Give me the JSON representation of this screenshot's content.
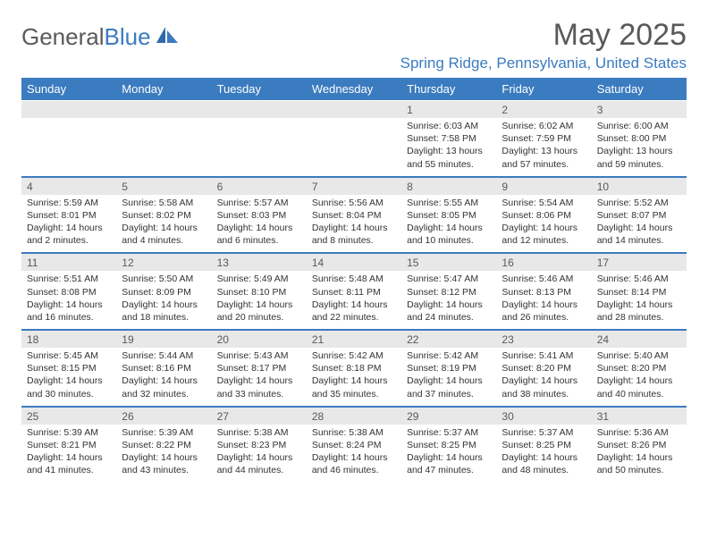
{
  "brand": {
    "text1": "General",
    "text2": "Blue"
  },
  "title": "May 2025",
  "location": "Spring Ridge, Pennsylvania, United States",
  "colors": {
    "accent": "#3b7bbf",
    "header_text": "#595959",
    "daynum_bg": "#e8e8e8",
    "body_text": "#333333",
    "page_bg": "#ffffff"
  },
  "typography": {
    "title_fontsize": 34,
    "location_fontsize": 17,
    "day_header_fontsize": 13,
    "daynum_fontsize": 12,
    "detail_fontsize": 10.5
  },
  "calendar": {
    "day_headers": [
      "Sunday",
      "Monday",
      "Tuesday",
      "Wednesday",
      "Thursday",
      "Friday",
      "Saturday"
    ],
    "weeks": [
      {
        "dates": [
          "",
          "",
          "",
          "",
          "1",
          "2",
          "3"
        ],
        "details": [
          "",
          "",
          "",
          "",
          "Sunrise: 6:03 AM\nSunset: 7:58 PM\nDaylight: 13 hours and 55 minutes.",
          "Sunrise: 6:02 AM\nSunset: 7:59 PM\nDaylight: 13 hours and 57 minutes.",
          "Sunrise: 6:00 AM\nSunset: 8:00 PM\nDaylight: 13 hours and 59 minutes."
        ]
      },
      {
        "dates": [
          "4",
          "5",
          "6",
          "7",
          "8",
          "9",
          "10"
        ],
        "details": [
          "Sunrise: 5:59 AM\nSunset: 8:01 PM\nDaylight: 14 hours and 2 minutes.",
          "Sunrise: 5:58 AM\nSunset: 8:02 PM\nDaylight: 14 hours and 4 minutes.",
          "Sunrise: 5:57 AM\nSunset: 8:03 PM\nDaylight: 14 hours and 6 minutes.",
          "Sunrise: 5:56 AM\nSunset: 8:04 PM\nDaylight: 14 hours and 8 minutes.",
          "Sunrise: 5:55 AM\nSunset: 8:05 PM\nDaylight: 14 hours and 10 minutes.",
          "Sunrise: 5:54 AM\nSunset: 8:06 PM\nDaylight: 14 hours and 12 minutes.",
          "Sunrise: 5:52 AM\nSunset: 8:07 PM\nDaylight: 14 hours and 14 minutes."
        ]
      },
      {
        "dates": [
          "11",
          "12",
          "13",
          "14",
          "15",
          "16",
          "17"
        ],
        "details": [
          "Sunrise: 5:51 AM\nSunset: 8:08 PM\nDaylight: 14 hours and 16 minutes.",
          "Sunrise: 5:50 AM\nSunset: 8:09 PM\nDaylight: 14 hours and 18 minutes.",
          "Sunrise: 5:49 AM\nSunset: 8:10 PM\nDaylight: 14 hours and 20 minutes.",
          "Sunrise: 5:48 AM\nSunset: 8:11 PM\nDaylight: 14 hours and 22 minutes.",
          "Sunrise: 5:47 AM\nSunset: 8:12 PM\nDaylight: 14 hours and 24 minutes.",
          "Sunrise: 5:46 AM\nSunset: 8:13 PM\nDaylight: 14 hours and 26 minutes.",
          "Sunrise: 5:46 AM\nSunset: 8:14 PM\nDaylight: 14 hours and 28 minutes."
        ]
      },
      {
        "dates": [
          "18",
          "19",
          "20",
          "21",
          "22",
          "23",
          "24"
        ],
        "details": [
          "Sunrise: 5:45 AM\nSunset: 8:15 PM\nDaylight: 14 hours and 30 minutes.",
          "Sunrise: 5:44 AM\nSunset: 8:16 PM\nDaylight: 14 hours and 32 minutes.",
          "Sunrise: 5:43 AM\nSunset: 8:17 PM\nDaylight: 14 hours and 33 minutes.",
          "Sunrise: 5:42 AM\nSunset: 8:18 PM\nDaylight: 14 hours and 35 minutes.",
          "Sunrise: 5:42 AM\nSunset: 8:19 PM\nDaylight: 14 hours and 37 minutes.",
          "Sunrise: 5:41 AM\nSunset: 8:20 PM\nDaylight: 14 hours and 38 minutes.",
          "Sunrise: 5:40 AM\nSunset: 8:20 PM\nDaylight: 14 hours and 40 minutes."
        ]
      },
      {
        "dates": [
          "25",
          "26",
          "27",
          "28",
          "29",
          "30",
          "31"
        ],
        "details": [
          "Sunrise: 5:39 AM\nSunset: 8:21 PM\nDaylight: 14 hours and 41 minutes.",
          "Sunrise: 5:39 AM\nSunset: 8:22 PM\nDaylight: 14 hours and 43 minutes.",
          "Sunrise: 5:38 AM\nSunset: 8:23 PM\nDaylight: 14 hours and 44 minutes.",
          "Sunrise: 5:38 AM\nSunset: 8:24 PM\nDaylight: 14 hours and 46 minutes.",
          "Sunrise: 5:37 AM\nSunset: 8:25 PM\nDaylight: 14 hours and 47 minutes.",
          "Sunrise: 5:37 AM\nSunset: 8:25 PM\nDaylight: 14 hours and 48 minutes.",
          "Sunrise: 5:36 AM\nSunset: 8:26 PM\nDaylight: 14 hours and 50 minutes."
        ]
      }
    ]
  }
}
